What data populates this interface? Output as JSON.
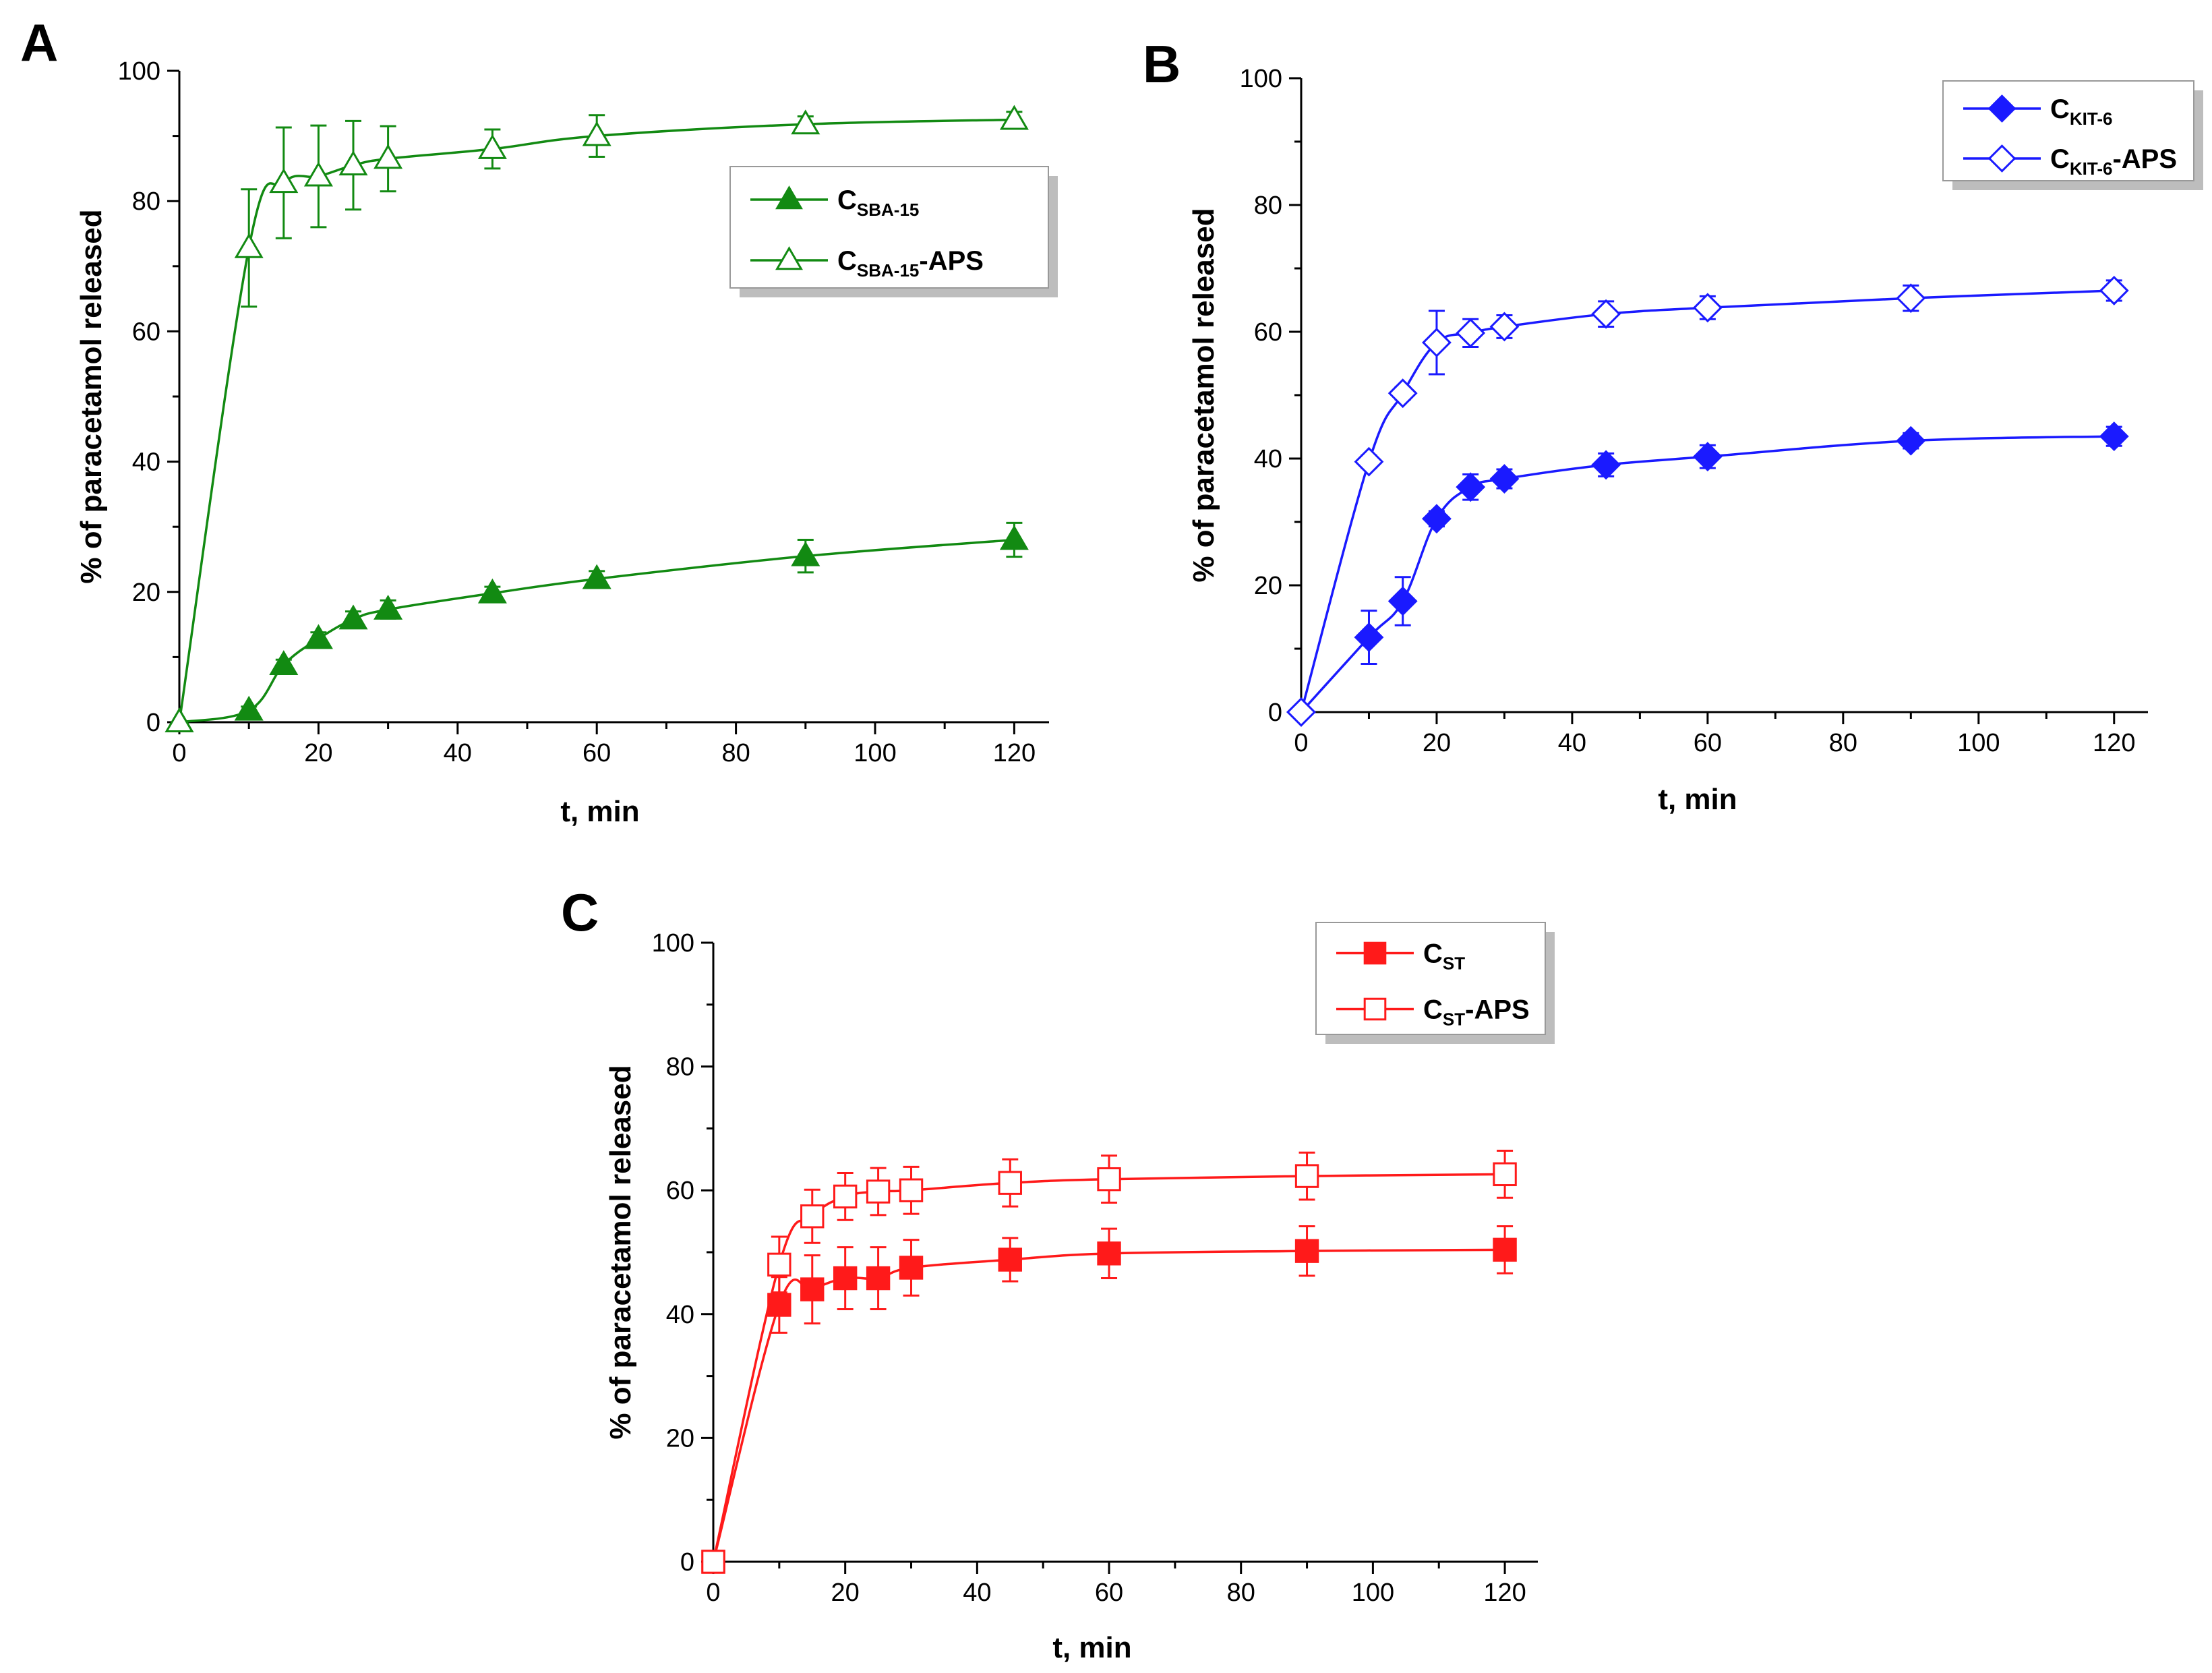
{
  "chart_data": [
    {
      "panel": "A",
      "type": "line",
      "xlabel": "t, min",
      "ylabel": "% of paracetamol released",
      "xlim": [
        0,
        125
      ],
      "ylim": [
        0,
        100
      ],
      "xticks": [
        0,
        20,
        40,
        60,
        80,
        100,
        120
      ],
      "yticks": [
        0,
        20,
        40,
        60,
        80,
        100
      ],
      "color": "#128a12",
      "series": [
        {
          "name_main": "C",
          "name_sub": "SBA-15",
          "name_suffix": "",
          "marker": "triangle",
          "filled": true,
          "x": [
            0,
            10,
            15,
            20,
            25,
            30,
            45,
            60,
            90,
            120
          ],
          "y": [
            0,
            1.8,
            8.8,
            12.8,
            15.8,
            17.3,
            19.8,
            22.0,
            25.5,
            28.0
          ],
          "err": [
            0,
            0.6,
            0.8,
            1.0,
            1.2,
            1.4,
            1.0,
            1.2,
            2.5,
            2.6
          ]
        },
        {
          "name_main": "C",
          "name_sub": "SBA-15",
          "name_suffix": "-APS",
          "marker": "triangle",
          "filled": false,
          "x": [
            0,
            10,
            15,
            20,
            25,
            30,
            45,
            60,
            90,
            120
          ],
          "y": [
            0,
            72.8,
            82.8,
            83.8,
            85.5,
            86.5,
            88.0,
            90.0,
            91.8,
            92.5
          ],
          "err": [
            0,
            9.0,
            8.5,
            7.8,
            6.8,
            5.0,
            3.0,
            3.2,
            1.2,
            1.2
          ]
        }
      ]
    },
    {
      "panel": "B",
      "type": "line",
      "xlabel": "t, min",
      "ylabel": "% of paracetamol released",
      "xlim": [
        0,
        125
      ],
      "ylim": [
        0,
        100
      ],
      "xticks": [
        0,
        20,
        40,
        60,
        80,
        100,
        120
      ],
      "yticks": [
        0,
        20,
        40,
        60,
        80,
        100
      ],
      "color": "#1a1aff",
      "series": [
        {
          "name_main": "C",
          "name_sub": "KIT-6",
          "name_suffix": "",
          "marker": "diamond",
          "filled": true,
          "x": [
            0,
            10,
            15,
            20,
            25,
            30,
            45,
            60,
            90,
            120
          ],
          "y": [
            0,
            11.8,
            17.5,
            30.5,
            35.5,
            36.8,
            39.0,
            40.3,
            42.8,
            43.5
          ],
          "err": [
            0,
            4.2,
            3.8,
            1.2,
            2.0,
            1.5,
            1.8,
            1.8,
            1.2,
            1.5
          ]
        },
        {
          "name_main": "C",
          "name_sub": "KIT-6",
          "name_suffix": "-APS",
          "marker": "diamond",
          "filled": false,
          "x": [
            0,
            10,
            15,
            20,
            25,
            30,
            45,
            60,
            90,
            120
          ],
          "y": [
            0,
            39.5,
            50.3,
            58.3,
            59.8,
            60.8,
            62.8,
            63.8,
            65.3,
            66.5
          ],
          "err": [
            0,
            1.0,
            1.0,
            5.0,
            2.2,
            1.8,
            2.0,
            1.8,
            2.0,
            1.6
          ]
        }
      ]
    },
    {
      "panel": "C",
      "type": "line",
      "xlabel": "t, min",
      "ylabel": "% of paracetamol released",
      "xlim": [
        0,
        125
      ],
      "ylim": [
        0,
        100
      ],
      "xticks": [
        0,
        20,
        40,
        60,
        80,
        100,
        120
      ],
      "yticks": [
        0,
        20,
        40,
        60,
        80,
        100
      ],
      "color": "#ff1a1a",
      "series": [
        {
          "name_main": "C",
          "name_sub": "ST",
          "name_suffix": "",
          "marker": "square",
          "filled": true,
          "x": [
            0,
            10,
            15,
            20,
            25,
            30,
            45,
            60,
            90,
            120
          ],
          "y": [
            0,
            41.5,
            44.0,
            45.8,
            45.8,
            47.5,
            48.8,
            49.8,
            50.2,
            50.4
          ],
          "err": [
            0,
            4.5,
            5.5,
            5.0,
            5.0,
            4.5,
            3.5,
            4.0,
            4.0,
            3.8
          ]
        },
        {
          "name_main": "C",
          "name_sub": "ST",
          "name_suffix": "-APS",
          "marker": "square",
          "filled": false,
          "x": [
            0,
            10,
            15,
            20,
            25,
            30,
            45,
            60,
            90,
            120
          ],
          "y": [
            0,
            48.0,
            55.8,
            59.0,
            59.8,
            60.0,
            61.2,
            61.8,
            62.3,
            62.6
          ],
          "err": [
            0,
            4.5,
            4.3,
            3.8,
            3.8,
            3.8,
            3.8,
            3.8,
            3.8,
            3.8
          ]
        }
      ]
    }
  ]
}
